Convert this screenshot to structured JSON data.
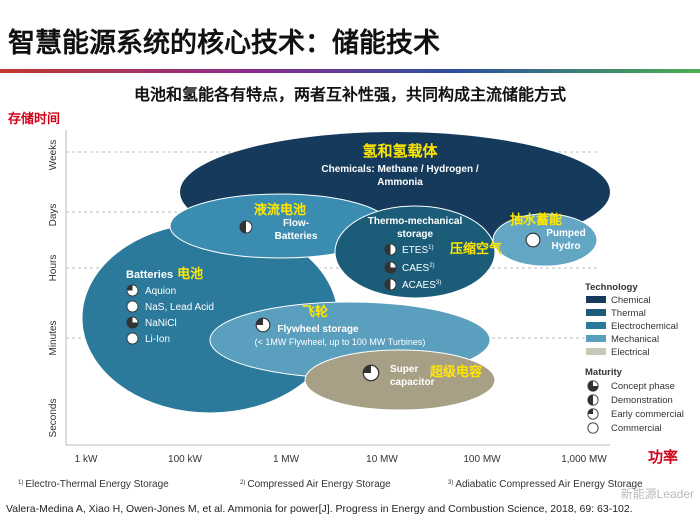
{
  "header": {
    "title": "智慧能源系统的核心技术：储能技术",
    "subtitle": "电池和氢能各有特点，两者互补性强，共同构成主流储能方式"
  },
  "axes": {
    "y_label": "存储时间",
    "y_ticks": [
      "Weeks",
      "Days",
      "Hours",
      "Minutes",
      "Seconds"
    ],
    "x_label": "功率",
    "x_ticks": [
      "1 kW",
      "100 kW",
      "1 MW",
      "10 MW",
      "100 MW",
      "1,000 MW"
    ]
  },
  "bubbles": {
    "chemical": {
      "cn_label": "氢和氢载体",
      "lines": [
        "Chemicals: Methane / Hydrogen /",
        "Ammonia"
      ]
    },
    "flow": {
      "cn_label": "液流电池",
      "lines": [
        "Flow-",
        "Batteries"
      ]
    },
    "pumped": {
      "cn_label": "抽水蓄能",
      "lines": [
        "Pumped",
        "Hydro"
      ]
    },
    "thermo": {
      "cn_label": "压缩空气",
      "lines": [
        "Thermo-mechanical",
        "storage"
      ],
      "items": [
        {
          "text": "ETES",
          "note": "1)"
        },
        {
          "text": "CAES",
          "note": "2)"
        },
        {
          "text": "ACAES",
          "note": "3)"
        }
      ]
    },
    "batteries": {
      "title": "Batteries",
      "cn_label": "电池",
      "items": [
        "Aquion",
        "NaS, Lead Acid",
        "NaNiCl",
        "Li-Ion"
      ]
    },
    "flywheel": {
      "cn_label": "飞轮",
      "lines": [
        "Flywheel storage",
        "(< 1MW Flywheel, up to 100 MW Turbines)"
      ]
    },
    "supercap": {
      "cn_label": "超级电容",
      "lines": [
        "Super",
        "capacitor"
      ]
    }
  },
  "legend": {
    "technology_title": "Technology",
    "technology": [
      "Chemical",
      "Thermal",
      "Electrochemical",
      "Mechanical",
      "Electrical"
    ],
    "maturity_title": "Maturity",
    "maturity": [
      "Concept phase",
      "Demonstration",
      "Early commercial",
      "Commercial"
    ]
  },
  "footnotes": [
    {
      "marker": "1)",
      "text": "Electro-Thermal Energy Storage"
    },
    {
      "marker": "2)",
      "text": "Compressed Air Energy Storage"
    },
    {
      "marker": "3)",
      "text": "Adiabatic Compressed Air Energy Storage"
    }
  ],
  "reference": "Valera-Medina A, Xiao H, Owen-Jones M, et al. Ammonia for power[J]. Progress in Energy and Combustion Science, 2018, 69: 63-102.",
  "watermark": "新能源Leader"
}
